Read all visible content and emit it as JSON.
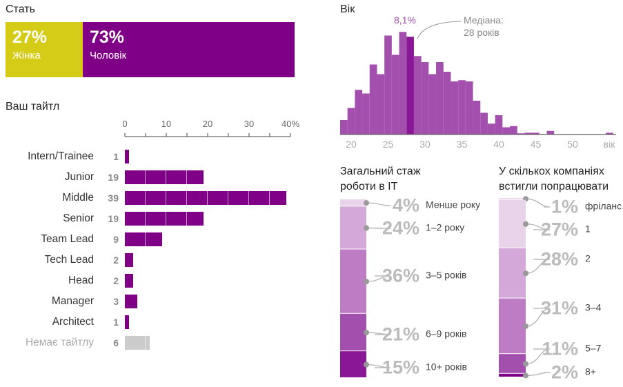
{
  "gender": {
    "title": "Стать",
    "segments": [
      {
        "pct": "27%",
        "label": "Жінка",
        "value": 27,
        "color": "#d4cc16"
      },
      {
        "pct": "73%",
        "label": "Чоловік",
        "value": 73,
        "color": "#7f0087"
      }
    ]
  },
  "titles": {
    "title": "Ваш тайтл",
    "axis_ticks": [
      "0",
      "10",
      "20",
      "30",
      "40%"
    ]
  },
  "age": {
    "title": "Вік",
    "peak_label": "8,1%",
    "median_label_1": "Медіана:",
    "median_label_2": "28 років",
    "axis_ticks": [
      "20",
      "25",
      "30",
      "35",
      "40",
      "45",
      "50",
      "вік"
    ]
  },
  "experience": {
    "title_1": "Загальний стаж",
    "title_2": "роботи в IT"
  },
  "companies": {
    "title_1": "У скількох компаніях",
    "title_2": "встигли попрацювати"
  },
  "chart_data": [
    {
      "type": "bar",
      "title": "Стать",
      "categories": [
        "Жінка",
        "Чоловік"
      ],
      "values": [
        27,
        73
      ]
    },
    {
      "type": "bar",
      "title": "Ваш тайтл",
      "xlim": [
        0,
        40
      ],
      "categories": [
        "Intern/Trainee",
        "Junior",
        "Middle",
        "Senior",
        "Team Lead",
        "Tech Lead",
        "Head",
        "Manager",
        "Architect",
        "Немає тайтлу"
      ],
      "values": [
        1,
        19,
        39,
        19,
        9,
        2,
        2,
        3,
        1,
        6
      ]
    },
    {
      "type": "bar",
      "title": "Вік",
      "xlabel": "вік",
      "median": 28,
      "x": [
        19,
        20,
        21,
        22,
        23,
        24,
        25,
        26,
        27,
        28,
        29,
        30,
        31,
        32,
        33,
        34,
        35,
        36,
        37,
        38,
        39,
        40,
        41,
        42,
        43,
        44,
        45,
        46,
        47,
        55
      ],
      "values": [
        1.2,
        2.2,
        3.7,
        3.4,
        5.8,
        5.0,
        8.2,
        6.6,
        8.5,
        8.1,
        6.5,
        6.0,
        5.0,
        6.0,
        5.2,
        4.4,
        4.5,
        4.4,
        2.8,
        1.8,
        0.9,
        1.6,
        0.6,
        0.7,
        0.1,
        0.15,
        0.15,
        0,
        0.3,
        0.15
      ]
    },
    {
      "type": "bar",
      "title": "Загальний стаж роботи в IT",
      "categories": [
        "Менше року",
        "1–2 року",
        "3–5 років",
        "6–9 років",
        "10+ років"
      ],
      "labels": [
        "4%",
        "24%",
        "36%",
        "21%",
        "15%"
      ],
      "values": [
        4,
        24,
        36,
        21,
        15
      ]
    },
    {
      "type": "bar",
      "title": "У скількох компаніях встигли попрацювати",
      "categories": [
        "фріланс",
        "1",
        "2",
        "3–4",
        "5–7",
        "8+"
      ],
      "labels": [
        "1%",
        "27%",
        "28%",
        "31%",
        "11%",
        "2%"
      ],
      "values": [
        1,
        27,
        28,
        31,
        11,
        2
      ]
    }
  ],
  "colors": {
    "accent": "#7f0087",
    "hist": "#a34fae",
    "hist_median": "#8a1896",
    "shades": [
      "#e8d3ea",
      "#d4a8d8",
      "#bd7cc3",
      "#a34fae",
      "#8a1896",
      "#7f0087"
    ]
  }
}
